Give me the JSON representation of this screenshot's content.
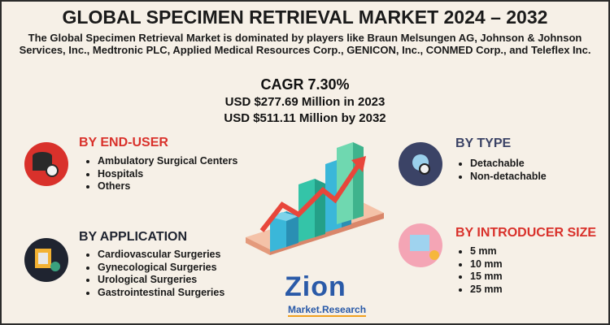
{
  "header": {
    "title": "GLOBAL SPECIMEN RETRIEVAL MARKET 2024 – 2032",
    "subtitle": "The Global Specimen Retrieval Market is dominated by players like Braun Melsungen AG, Johnson & Johnson Services, Inc., Medtronic PLC, Applied Medical Resources Corp., GENICON, Inc., CONMED Corp., and Teleflex Inc."
  },
  "stats": [
    "CAGR 7.30%",
    "USD $277.69 Million in 2023",
    "USD $511.11 Million by 2032"
  ],
  "sections": [
    {
      "title": "BY END-USER",
      "items": [
        "Ambulatory Surgical Centers",
        "Hospitals",
        "Others"
      ]
    },
    {
      "title": "BY APPLICATION",
      "items": [
        "Cardiovascular Surgeries",
        "Gynecological Surgeries",
        "Urological Surgeries",
        "Gastrointestinal Surgeries"
      ]
    },
    {
      "title": "BY TYPE",
      "items": [
        "Detachable",
        "Non-detachable"
      ]
    },
    {
      "title": "BY INTRODUCER SIZE",
      "items": [
        "5 mm",
        "10 mm",
        "15 mm",
        "25 mm"
      ]
    }
  ],
  "logo": {
    "name": "Zion",
    "tagline": "Market.Research"
  }
}
